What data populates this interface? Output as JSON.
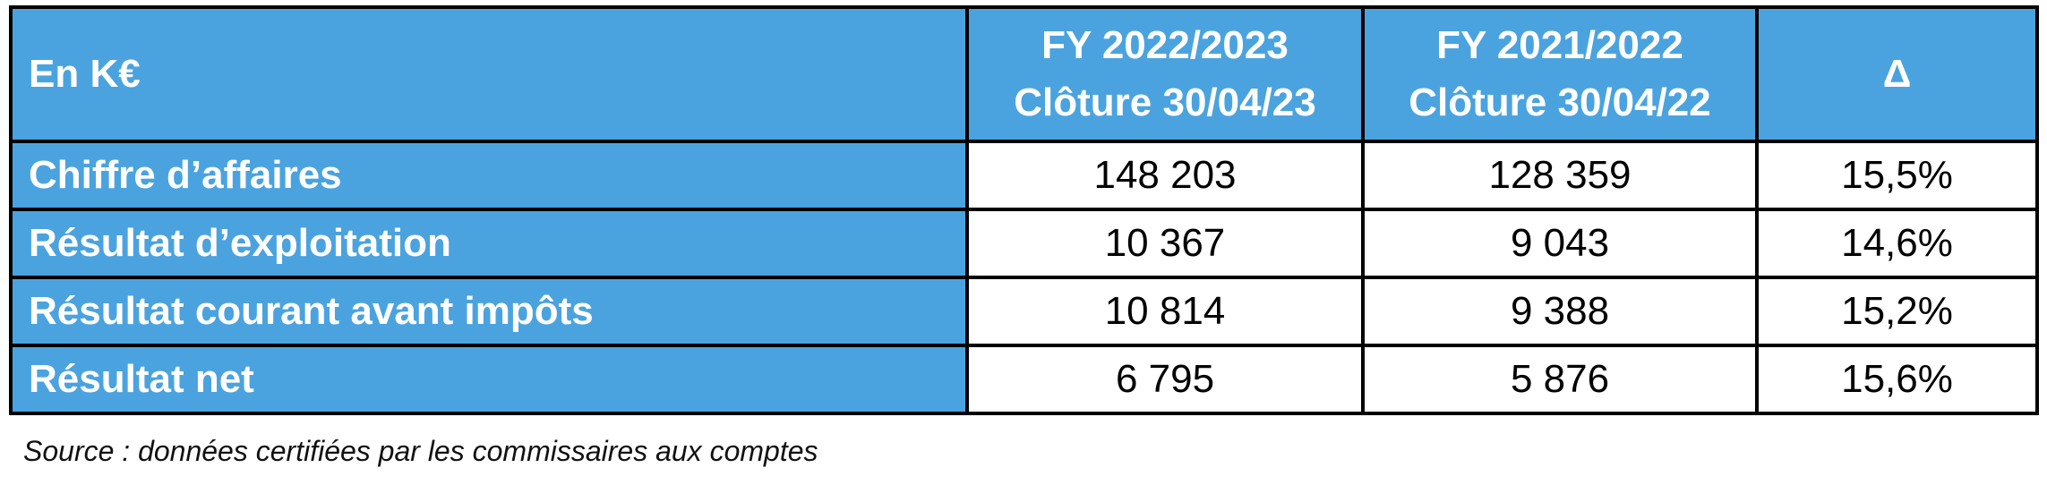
{
  "table": {
    "header": [
      "En K€",
      [
        "FY 2022/2023",
        "Clôture 30/04/23"
      ],
      [
        "FY 2021/2022",
        "Clôture 30/04/22"
      ],
      "Δ"
    ],
    "rows": [
      [
        "Chiffre d’affaires",
        "148 203",
        "128 359",
        "15,5%"
      ],
      [
        "Résultat d’exploitation",
        "10 367",
        "9 043",
        "14,6%"
      ],
      [
        "Résultat courant avant impôts",
        "10 814",
        "9 388",
        "15,2%"
      ],
      [
        "Résultat net",
        "6 795",
        "5 876",
        "15,6%"
      ]
    ]
  },
  "source": "Source : données certifiées par les commissaires aux comptes"
}
